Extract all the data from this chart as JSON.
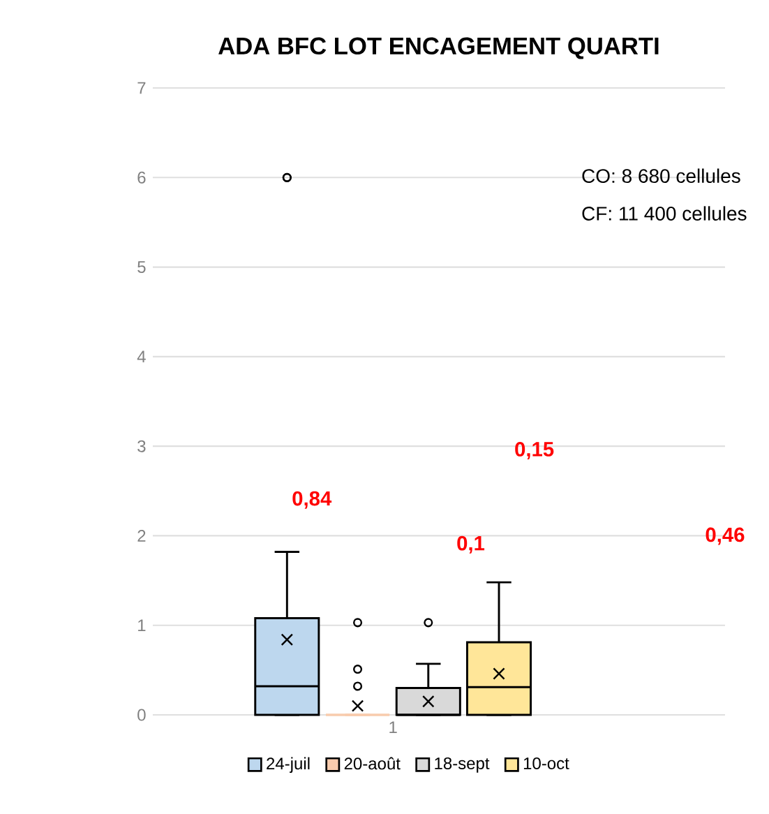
{
  "chart_data": {
    "type": "box",
    "title": "ADA BFC LOT ENCAGEMENT QUARTI",
    "categories": [
      "1"
    ],
    "series": [
      {
        "name": "24-juil",
        "color": "#bdd7ee",
        "boxes": [
          {
            "low": 0,
            "q1": 0,
            "median": 0.32,
            "q3": 1.08,
            "high": 1.82,
            "mean": 0.84,
            "outliers": [
              6,
              6
            ]
          }
        ]
      },
      {
        "name": "20-août",
        "color": "#f8cbad",
        "boxes": [
          {
            "low": 0,
            "q1": 0,
            "median": 0,
            "q3": 0,
            "high": 0,
            "mean": 0.1,
            "outliers": [
              1.03,
              0.51,
              0.32
            ]
          }
        ]
      },
      {
        "name": "18-sept",
        "color": "#d9d9d9",
        "boxes": [
          {
            "low": 0,
            "q1": 0,
            "median": 0,
            "q3": 0.3,
            "high": 0.57,
            "mean": 0.15,
            "outliers": [
              1.03
            ]
          }
        ]
      },
      {
        "name": "10-oct",
        "color": "#ffe699",
        "boxes": [
          {
            "low": 0,
            "q1": 0,
            "median": 0.31,
            "q3": 0.81,
            "high": 1.48,
            "mean": 0.46
          }
        ]
      }
    ],
    "ylim": [
      0,
      7
    ],
    "yticks": [
      0,
      1,
      2,
      3,
      4,
      5,
      6,
      7
    ],
    "grid": "y",
    "legend": "bottom",
    "annotations": [
      "0,84",
      "0,1",
      "0,15",
      "0,46",
      "CO:  8 680 cellules",
      "CF: 11 400 cellules"
    ]
  }
}
